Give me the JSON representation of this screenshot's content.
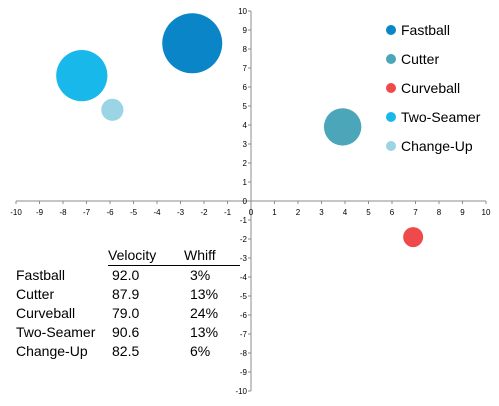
{
  "chart_data": {
    "type": "bubble",
    "xlim": [
      -10,
      10
    ],
    "ylim": [
      -10,
      10
    ],
    "x_ticks": [
      -10,
      -9,
      -8,
      -7,
      -6,
      -5,
      -4,
      -3,
      -2,
      -1,
      0,
      1,
      2,
      3,
      4,
      5,
      6,
      7,
      8,
      9,
      10
    ],
    "y_ticks": [
      -10,
      -9,
      -8,
      -7,
      -6,
      -5,
      -4,
      -3,
      -2,
      -1,
      0,
      1,
      2,
      3,
      4,
      5,
      6,
      7,
      8,
      9,
      10
    ],
    "grid": false,
    "legend_position": "top-right",
    "series": [
      {
        "name": "Fastball",
        "x": -2.5,
        "y": 8.3,
        "size": 92.0,
        "color": "#0a85c8"
      },
      {
        "name": "Cutter",
        "x": 3.9,
        "y": 3.9,
        "size": 87.9,
        "color": "#4aa6b8"
      },
      {
        "name": "Curveball",
        "x": 6.9,
        "y": -1.9,
        "size": 79.0,
        "color": "#ef4a4a"
      },
      {
        "name": "Two-Seamer",
        "x": -7.2,
        "y": 6.6,
        "size": 90.6,
        "color": "#18b9ea"
      },
      {
        "name": "Change-Up",
        "x": -5.9,
        "y": 4.8,
        "size": 82.5,
        "color": "#9bd4e4"
      }
    ]
  },
  "table": {
    "headers": {
      "velocity": "Velocity",
      "whiff": "Whiff"
    },
    "rows": [
      {
        "name": "Fastball",
        "velocity": "92.0",
        "whiff": "3%"
      },
      {
        "name": "Cutter",
        "velocity": "87.9",
        "whiff": "13%"
      },
      {
        "name": "Curveball",
        "velocity": "79.0",
        "whiff": "24%"
      },
      {
        "name": "Two-Seamer",
        "velocity": "90.6",
        "whiff": "13%"
      },
      {
        "name": "Change-Up",
        "velocity": "82.5",
        "whiff": "6%"
      }
    ]
  }
}
